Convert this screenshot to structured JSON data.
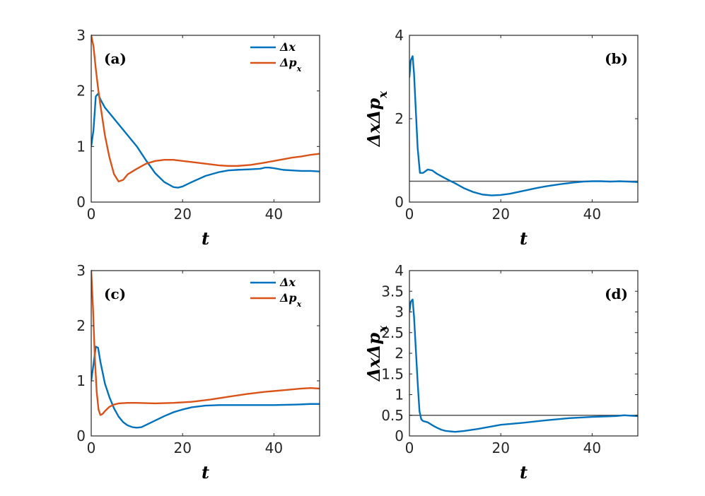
{
  "chart_data": [
    {
      "id": "a",
      "type": "line",
      "panel_label": "(a)",
      "xlabel": "t",
      "ylabel": "",
      "xlim": [
        0,
        50
      ],
      "ylim": [
        0,
        3
      ],
      "xticks": [
        0,
        20,
        40
      ],
      "yticks": [
        0,
        1,
        2,
        3
      ],
      "legend": {
        "placement": "top-right",
        "entries": [
          "Δx",
          "Δp_x"
        ]
      },
      "series": [
        {
          "name": "Δx",
          "color": "#0072BD",
          "x": [
            0,
            0.5,
            1,
            1.5,
            2,
            3,
            4,
            6,
            8,
            10,
            12,
            14,
            16,
            18,
            19,
            20,
            22,
            25,
            28,
            30,
            32,
            35,
            37,
            38,
            39,
            40,
            42,
            44,
            46,
            48,
            50
          ],
          "y": [
            1.0,
            1.3,
            1.9,
            1.95,
            1.85,
            1.7,
            1.6,
            1.4,
            1.2,
            1.0,
            0.75,
            0.52,
            0.36,
            0.27,
            0.26,
            0.28,
            0.36,
            0.47,
            0.54,
            0.57,
            0.58,
            0.59,
            0.6,
            0.62,
            0.62,
            0.61,
            0.58,
            0.57,
            0.56,
            0.56,
            0.55
          ]
        },
        {
          "name": "Δp_x",
          "color": "#D95319",
          "x": [
            0,
            0.5,
            1,
            1.5,
            2,
            3,
            4,
            5,
            6,
            7,
            8,
            10,
            12,
            14,
            16,
            18,
            20,
            22,
            25,
            28,
            30,
            32,
            35,
            38,
            40,
            42,
            44,
            46,
            48,
            50
          ],
          "y": [
            3.0,
            2.8,
            2.4,
            2.05,
            1.75,
            1.2,
            0.8,
            0.5,
            0.37,
            0.4,
            0.5,
            0.6,
            0.69,
            0.74,
            0.76,
            0.76,
            0.74,
            0.72,
            0.69,
            0.66,
            0.65,
            0.65,
            0.67,
            0.71,
            0.74,
            0.77,
            0.8,
            0.82,
            0.85,
            0.87
          ]
        }
      ]
    },
    {
      "id": "b",
      "type": "line",
      "panel_label": "(b)",
      "xlabel": "t",
      "ylabel": "ΔxΔp_x",
      "xlim": [
        0,
        50
      ],
      "ylim": [
        0,
        4
      ],
      "xticks": [
        0,
        20,
        40
      ],
      "yticks": [
        0,
        2,
        4
      ],
      "reference_line": {
        "y": 0.5,
        "color": "#555555"
      },
      "series": [
        {
          "name": "ΔxΔp_x",
          "color": "#0072BD",
          "x": [
            0,
            0.3,
            0.7,
            1.0,
            1.4,
            1.8,
            2.3,
            3.0,
            4.0,
            5.0,
            6.0,
            7.0,
            8.0,
            10.0,
            12.0,
            14.0,
            16.0,
            18.0,
            20.0,
            22.0,
            25.0,
            28.0,
            30.0,
            33.0,
            36.0,
            38.0,
            40.0,
            42.0,
            44.0,
            46.0,
            48.0,
            50.0
          ],
          "y": [
            3.0,
            3.4,
            3.5,
            3.1,
            2.2,
            1.3,
            0.7,
            0.7,
            0.78,
            0.76,
            0.68,
            0.62,
            0.56,
            0.45,
            0.33,
            0.24,
            0.18,
            0.16,
            0.17,
            0.2,
            0.27,
            0.34,
            0.38,
            0.43,
            0.47,
            0.49,
            0.5,
            0.5,
            0.49,
            0.5,
            0.49,
            0.48
          ]
        }
      ]
    },
    {
      "id": "c",
      "type": "line",
      "panel_label": "(c)",
      "xlabel": "t",
      "ylabel": "",
      "xlim": [
        0,
        50
      ],
      "ylim": [
        0,
        3
      ],
      "xticks": [
        0,
        20,
        40
      ],
      "yticks": [
        0,
        1,
        2,
        3
      ],
      "legend": {
        "placement": "top-right",
        "entries": [
          "Δx",
          "Δp_x"
        ]
      },
      "series": [
        {
          "name": "Δx",
          "color": "#0072BD",
          "x": [
            0,
            0.5,
            1,
            1.5,
            2,
            3,
            4,
            5,
            6,
            7,
            8,
            9,
            10,
            11,
            12,
            14,
            16,
            18,
            20,
            22,
            25,
            28,
            30,
            35,
            40,
            45,
            48,
            50
          ],
          "y": [
            1.0,
            1.3,
            1.62,
            1.6,
            1.35,
            0.95,
            0.7,
            0.5,
            0.35,
            0.25,
            0.19,
            0.16,
            0.15,
            0.16,
            0.2,
            0.28,
            0.36,
            0.43,
            0.48,
            0.52,
            0.55,
            0.56,
            0.56,
            0.56,
            0.56,
            0.57,
            0.58,
            0.58
          ]
        },
        {
          "name": "Δp_x",
          "color": "#D95319",
          "x": [
            0,
            0.4,
            0.8,
            1.2,
            1.6,
            2.0,
            2.5,
            3,
            4,
            5,
            6,
            8,
            10,
            14,
            18,
            22,
            26,
            30,
            34,
            38,
            42,
            46,
            48,
            50
          ],
          "y": [
            3.0,
            2.3,
            1.4,
            0.8,
            0.48,
            0.38,
            0.4,
            0.45,
            0.53,
            0.57,
            0.59,
            0.6,
            0.6,
            0.59,
            0.6,
            0.62,
            0.66,
            0.71,
            0.76,
            0.8,
            0.83,
            0.86,
            0.87,
            0.86
          ]
        }
      ]
    },
    {
      "id": "d",
      "type": "line",
      "panel_label": "(d)",
      "xlabel": "t",
      "ylabel": "ΔxΔp_x",
      "xlim": [
        0,
        50
      ],
      "ylim": [
        0,
        4
      ],
      "xticks": [
        0,
        20,
        40
      ],
      "yticks": [
        0,
        0.5,
        1,
        1.5,
        2,
        2.5,
        3,
        3.5,
        4
      ],
      "reference_line": {
        "y": 0.5,
        "color": "#555555"
      },
      "series": [
        {
          "name": "ΔxΔp_x",
          "color": "#0072BD",
          "x": [
            0,
            0.3,
            0.7,
            1.0,
            1.4,
            1.8,
            2.2,
            2.6,
            3.0,
            4.0,
            5.0,
            6.0,
            7.0,
            8.0,
            10.0,
            12.0,
            15.0,
            18.0,
            20.0,
            25.0,
            30.0,
            35.0,
            40.0,
            45.0,
            47.0,
            50.0
          ],
          "y": [
            3.0,
            3.25,
            3.3,
            2.9,
            2.1,
            1.3,
            0.6,
            0.4,
            0.36,
            0.33,
            0.26,
            0.2,
            0.15,
            0.12,
            0.1,
            0.12,
            0.17,
            0.23,
            0.27,
            0.32,
            0.38,
            0.43,
            0.46,
            0.48,
            0.5,
            0.48
          ]
        }
      ]
    }
  ]
}
